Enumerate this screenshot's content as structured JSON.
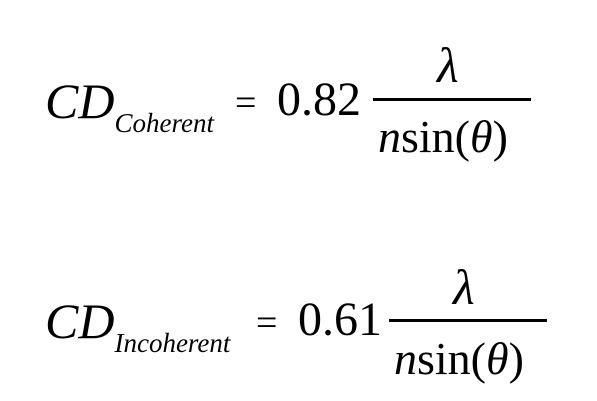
{
  "equations": [
    {
      "lhs": "CD",
      "subscript": "Coherent",
      "equals": "=",
      "coefficient": "0.82",
      "numerator": "λ",
      "denominator": {
        "n": "n",
        "func": "sin(",
        "theta": "θ",
        "close": ")"
      }
    },
    {
      "lhs": "CD",
      "subscript": "Incoherent",
      "equals": "=",
      "coefficient": "0.61",
      "numerator": "λ",
      "denominator": {
        "n": "n",
        "func": "sin(",
        "theta": "θ",
        "close": ")"
      }
    }
  ]
}
